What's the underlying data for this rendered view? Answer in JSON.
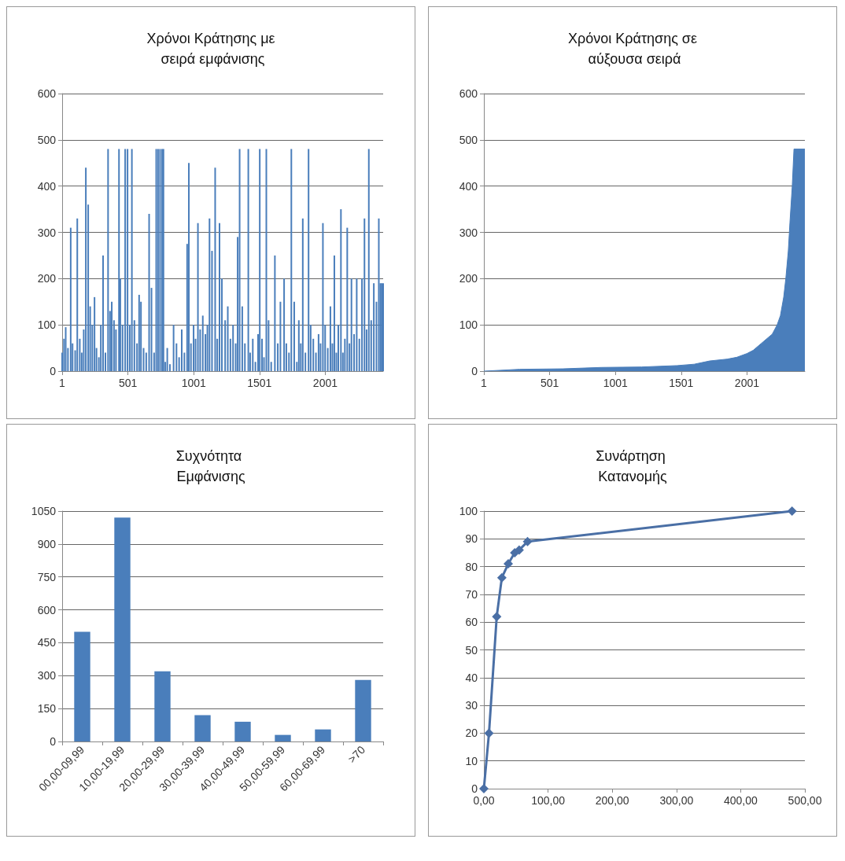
{
  "chart_data": [
    {
      "type": "bar",
      "title": "Χρόνοι Κράτησης με σειρά εμφάνισης",
      "color": "#4a7ebb",
      "xlim": [
        1,
        2441
      ],
      "xticks": [
        1,
        501,
        1001,
        1501,
        2001
      ],
      "ylim": [
        0,
        600
      ],
      "yticks": [
        0,
        100,
        200,
        300,
        400,
        500,
        600
      ],
      "grid": "y",
      "x": [
        1,
        15,
        28,
        45,
        66,
        80,
        100,
        116,
        135,
        150,
        165,
        181,
        199,
        214,
        230,
        247,
        262,
        280,
        295,
        312,
        330,
        350,
        365,
        378,
        395,
        410,
        433,
        443,
        460,
        480,
        498,
        515,
        531,
        550,
        570,
        586,
        600,
        620,
        640,
        662,
        680,
        700,
        716,
        730,
        745,
        760,
        771,
        785,
        800,
        820,
        848,
        870,
        890,
        910,
        930,
        951,
        964,
        980,
        1000,
        1015,
        1033,
        1050,
        1070,
        1090,
        1105,
        1121,
        1140,
        1164,
        1180,
        1197,
        1215,
        1240,
        1260,
        1280,
        1300,
        1320,
        1335,
        1350,
        1370,
        1390,
        1416,
        1430,
        1450,
        1470,
        1490,
        1503,
        1520,
        1535,
        1553,
        1570,
        1590,
        1618,
        1640,
        1660,
        1688,
        1705,
        1725,
        1743,
        1765,
        1785,
        1800,
        1815,
        1830,
        1850,
        1874,
        1890,
        1910,
        1930,
        1950,
        1965,
        1983,
        2000,
        2020,
        2040,
        2055,
        2070,
        2085,
        2100,
        2120,
        2135,
        2150,
        2168,
        2185,
        2200,
        2220,
        2240,
        2260,
        2280,
        2299,
        2315,
        2332,
        2350,
        2370,
        2390,
        2408,
        2420,
        2430,
        2441
      ],
      "values": [
        40,
        70,
        95,
        50,
        310,
        60,
        45,
        330,
        70,
        40,
        90,
        440,
        360,
        140,
        100,
        160,
        50,
        30,
        100,
        250,
        40,
        480,
        130,
        150,
        110,
        90,
        480,
        200,
        100,
        480,
        480,
        100,
        480,
        110,
        60,
        165,
        150,
        50,
        40,
        340,
        180,
        40,
        480,
        480,
        480,
        480,
        480,
        20,
        50,
        15,
        100,
        60,
        30,
        90,
        40,
        275,
        450,
        60,
        100,
        70,
        320,
        90,
        120,
        80,
        100,
        330,
        260,
        440,
        70,
        320,
        200,
        110,
        140,
        70,
        100,
        60,
        290,
        480,
        140,
        60,
        480,
        40,
        70,
        20,
        80,
        480,
        70,
        30,
        480,
        110,
        20,
        250,
        60,
        150,
        200,
        60,
        40,
        480,
        150,
        20,
        110,
        60,
        330,
        40,
        480,
        100,
        70,
        40,
        80,
        60,
        320,
        100,
        50,
        140,
        60,
        250,
        40,
        100,
        350,
        40,
        70,
        310,
        60,
        200,
        80,
        200,
        70,
        200,
        330,
        90,
        480,
        110,
        190,
        150,
        330,
        190,
        190,
        190
      ]
    },
    {
      "type": "area",
      "title": "Χρόνοι Κράτησης σε αύξουσα σειρά",
      "color": "#4a7ebb",
      "xlim": [
        1,
        2441
      ],
      "xticks": [
        1,
        501,
        1001,
        1501,
        2001
      ],
      "ylim": [
        0,
        600
      ],
      "yticks": [
        0,
        100,
        200,
        300,
        400,
        500,
        600
      ],
      "grid": "y",
      "x": [
        1,
        273,
        600,
        893,
        1200,
        1470,
        1600,
        1717,
        1850,
        1924,
        2000,
        2048,
        2110,
        2193,
        2230,
        2255,
        2280,
        2296,
        2315,
        2327,
        2345,
        2358,
        2441
      ],
      "values": [
        0,
        4,
        5,
        8,
        9,
        12,
        15,
        22,
        26,
        30,
        38,
        45,
        60,
        80,
        100,
        120,
        160,
        200,
        260,
        320,
        400,
        480,
        480
      ]
    },
    {
      "type": "bar",
      "title": "Συχνότητα Εμφάνισης",
      "color": "#4a7ebb",
      "categories": [
        "00,00-09,99",
        "10,00-19,99",
        "20,00-29,99",
        "30,00-39,99",
        "40,00-49,99",
        "50,00-59,99",
        "60,00-69,99",
        ">70"
      ],
      "values": [
        500,
        1020,
        320,
        120,
        90,
        30,
        55,
        280
      ],
      "ylim": [
        0,
        1050
      ],
      "yticks": [
        0,
        150,
        300,
        450,
        600,
        750,
        900,
        1050
      ],
      "grid": "y"
    },
    {
      "type": "line",
      "title": "Συνάρτηση Κατανομής",
      "color": "#4a6fa5",
      "marker": "diamond",
      "x": [
        0,
        8,
        20,
        28,
        38,
        48,
        55,
        68,
        480
      ],
      "values": [
        0,
        20,
        62,
        76,
        81,
        85,
        86,
        89,
        100
      ],
      "xlim": [
        0,
        500
      ],
      "xticks": [
        {
          "value": 0,
          "label": "0,00"
        },
        {
          "value": 100,
          "label": "100,00"
        },
        {
          "value": 200,
          "label": "200,00"
        },
        {
          "value": 300,
          "label": "300,00"
        },
        {
          "value": 400,
          "label": "400,00"
        },
        {
          "value": 500,
          "label": "500,00"
        }
      ],
      "ylim": [
        0,
        100
      ],
      "yticks": [
        0,
        10,
        20,
        30,
        40,
        50,
        60,
        70,
        80,
        90,
        100
      ],
      "grid": "y"
    }
  ]
}
